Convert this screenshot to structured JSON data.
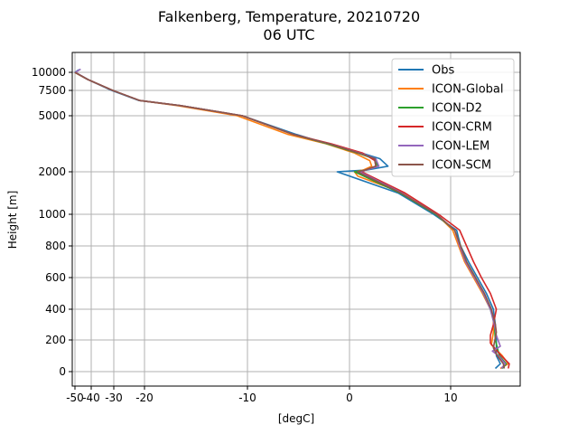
{
  "chart_data": {
    "type": "line",
    "title": "Falkenberg, Temperature, 20210720",
    "subtitle": "06 UTC",
    "xlabel": "[degC]",
    "ylabel": "Height [m]",
    "xlim": [
      -52,
      17
    ],
    "x_ticks": [
      {
        "value": -50,
        "label": "-50"
      },
      {
        "value": -40,
        "label": "-40"
      },
      {
        "value": -30,
        "label": "-30"
      },
      {
        "value": -20,
        "label": "-20"
      },
      {
        "value": -10,
        "label": "-10"
      },
      {
        "value": 0,
        "label": "0"
      },
      {
        "value": 10,
        "label": "10"
      }
    ],
    "y_ticks": [
      {
        "value": 0,
        "label": "0"
      },
      {
        "value": 200,
        "label": "200"
      },
      {
        "value": 400,
        "label": "400"
      },
      {
        "value": 600,
        "label": "600"
      },
      {
        "value": 800,
        "label": "800"
      },
      {
        "value": 1000,
        "label": "1000"
      },
      {
        "value": 2000,
        "label": "2000"
      },
      {
        "value": 5000,
        "label": "5000"
      },
      {
        "value": 7500,
        "label": "7500"
      },
      {
        "value": 10000,
        "label": "10000"
      }
    ],
    "grid": true,
    "legend_position": "top-right",
    "series": [
      {
        "name": "Obs",
        "color": "#1f77b4",
        "points": [
          [
            14.5,
            20
          ],
          [
            15.0,
            50
          ],
          [
            14.6,
            100
          ],
          [
            14.6,
            200
          ],
          [
            14.5,
            300
          ],
          [
            14.3,
            400
          ],
          [
            13.6,
            500
          ],
          [
            12.7,
            600
          ],
          [
            11.8,
            700
          ],
          [
            11.0,
            800
          ],
          [
            10.6,
            900
          ],
          [
            8.3,
            1000
          ],
          [
            4.8,
            1500
          ],
          [
            -1.2,
            2000
          ],
          [
            1.8,
            2100
          ],
          [
            3.8,
            2300
          ],
          [
            3.0,
            2700
          ],
          [
            1.2,
            3000
          ],
          [
            -2.2,
            3500
          ],
          [
            -5.2,
            4000
          ],
          [
            -10.5,
            5000
          ],
          [
            -16.5,
            6000
          ],
          [
            -21.8,
            6500
          ],
          [
            -31.0,
            7500
          ],
          [
            -42.0,
            9000
          ],
          [
            -50.0,
            10000
          ],
          [
            -47.5,
            10500
          ]
        ]
      },
      {
        "name": "ICON-Global",
        "color": "#ff7f0e",
        "points": [
          [
            15.0,
            20
          ],
          [
            15.8,
            50
          ],
          [
            15.2,
            100
          ],
          [
            14.1,
            170
          ],
          [
            14.3,
            250
          ],
          [
            14.3,
            350
          ],
          [
            14.0,
            400
          ],
          [
            13.2,
            500
          ],
          [
            12.3,
            600
          ],
          [
            11.4,
            700
          ],
          [
            10.8,
            800
          ],
          [
            10.2,
            900
          ],
          [
            8.6,
            1000
          ],
          [
            5.3,
            1500
          ],
          [
            0.8,
            1900
          ],
          [
            0.5,
            2000
          ],
          [
            1.4,
            2100
          ],
          [
            2.2,
            2300
          ],
          [
            2.0,
            2600
          ],
          [
            0.5,
            3000
          ],
          [
            -2.3,
            3500
          ],
          [
            -6.0,
            4000
          ],
          [
            -11.0,
            5000
          ],
          [
            -16.8,
            6000
          ],
          [
            -21.5,
            6500
          ],
          [
            -30.5,
            7500
          ],
          [
            -42.0,
            9000
          ],
          [
            -50.2,
            10000
          ]
        ]
      },
      {
        "name": "ICON-D2",
        "color": "#2ca02c",
        "points": [
          [
            15.2,
            20
          ],
          [
            15.6,
            50
          ],
          [
            14.9,
            100
          ],
          [
            14.5,
            200
          ],
          [
            14.4,
            300
          ],
          [
            14.0,
            400
          ],
          [
            13.3,
            500
          ],
          [
            12.5,
            600
          ],
          [
            11.6,
            700
          ],
          [
            11.0,
            800
          ],
          [
            10.4,
            900
          ],
          [
            8.5,
            1000
          ],
          [
            5.0,
            1500
          ],
          [
            0.5,
            2000
          ],
          [
            1.7,
            2100
          ],
          [
            2.8,
            2300
          ],
          [
            2.4,
            2700
          ],
          [
            0.8,
            3000
          ],
          [
            -2.2,
            3500
          ],
          [
            -5.5,
            4000
          ],
          [
            -10.5,
            5000
          ],
          [
            -16.5,
            6000
          ],
          [
            -21.5,
            6500
          ],
          [
            -30.5,
            7500
          ],
          [
            -42.0,
            9000
          ],
          [
            -50.1,
            10000
          ]
        ]
      },
      {
        "name": "ICON-CRM",
        "color": "#d62728",
        "points": [
          [
            15.8,
            20
          ],
          [
            15.9,
            50
          ],
          [
            15.1,
            100
          ],
          [
            14.0,
            180
          ],
          [
            14.0,
            230
          ],
          [
            14.3,
            300
          ],
          [
            14.6,
            400
          ],
          [
            14.0,
            500
          ],
          [
            13.1,
            600
          ],
          [
            12.3,
            700
          ],
          [
            11.6,
            800
          ],
          [
            10.9,
            900
          ],
          [
            8.8,
            1000
          ],
          [
            5.5,
            1500
          ],
          [
            1.2,
            2000
          ],
          [
            1.6,
            2100
          ],
          [
            2.6,
            2300
          ],
          [
            2.5,
            2600
          ],
          [
            1.3,
            3000
          ],
          [
            -1.8,
            3500
          ],
          [
            -5.5,
            4000
          ],
          [
            -10.5,
            5000
          ],
          [
            -16.5,
            6000
          ],
          [
            -21.5,
            6500
          ],
          [
            -30.5,
            7500
          ],
          [
            -42.0,
            9000
          ],
          [
            -50.0,
            10000
          ]
        ]
      },
      {
        "name": "ICON-LEM",
        "color": "#9467bd",
        "points": [
          [
            15.1,
            20
          ],
          [
            15.5,
            50
          ],
          [
            14.8,
            100
          ],
          [
            14.2,
            130
          ],
          [
            15.0,
            160
          ],
          [
            14.6,
            230
          ],
          [
            14.4,
            300
          ],
          [
            14.0,
            400
          ],
          [
            13.3,
            500
          ],
          [
            12.4,
            600
          ],
          [
            11.5,
            700
          ],
          [
            10.9,
            800
          ],
          [
            10.4,
            900
          ],
          [
            8.6,
            1000
          ],
          [
            5.2,
            1500
          ],
          [
            1.0,
            2000
          ],
          [
            1.7,
            2100
          ],
          [
            2.9,
            2300
          ],
          [
            2.6,
            2700
          ],
          [
            1.0,
            3000
          ],
          [
            -2.0,
            3500
          ],
          [
            -5.5,
            4000
          ],
          [
            -10.5,
            5000
          ],
          [
            -16.5,
            6000
          ],
          [
            -21.5,
            6500
          ],
          [
            -30.5,
            7500
          ],
          [
            -42.0,
            9000
          ],
          [
            -49.8,
            10000
          ],
          [
            -46.5,
            10600
          ]
        ]
      },
      {
        "name": "ICON-SCM",
        "color": "#8c564b",
        "points": [
          [
            15.4,
            20
          ],
          [
            15.3,
            50
          ],
          [
            14.7,
            100
          ],
          [
            14.3,
            150
          ],
          [
            14.6,
            250
          ],
          [
            14.5,
            300
          ],
          [
            14.1,
            400
          ],
          [
            13.4,
            500
          ],
          [
            12.5,
            600
          ],
          [
            11.6,
            700
          ],
          [
            11.0,
            800
          ],
          [
            10.4,
            900
          ],
          [
            8.6,
            1000
          ],
          [
            5.1,
            1500
          ],
          [
            0.8,
            2000
          ],
          [
            1.6,
            2100
          ],
          [
            2.6,
            2300
          ],
          [
            2.5,
            2700
          ],
          [
            0.9,
            3000
          ],
          [
            -2.0,
            3500
          ],
          [
            -5.5,
            4000
          ],
          [
            -10.5,
            5000
          ],
          [
            -16.5,
            6000
          ],
          [
            -21.5,
            6500
          ],
          [
            -30.5,
            7500
          ],
          [
            -42.0,
            9000
          ],
          [
            -50.0,
            10000
          ]
        ]
      }
    ]
  }
}
